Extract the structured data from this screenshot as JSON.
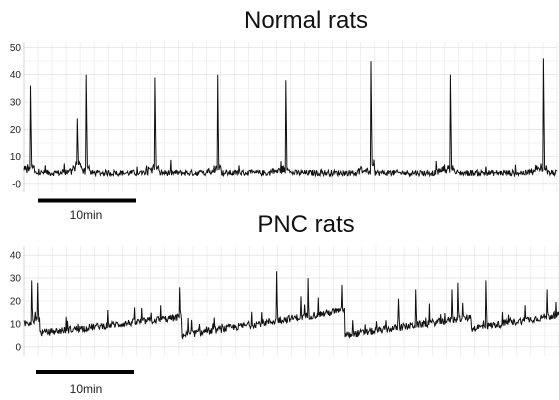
{
  "chart_data": [
    {
      "type": "line",
      "title": "Normal rats",
      "xlabel": "",
      "ylabel": "",
      "ylim": [
        -3,
        52
      ],
      "yticks": [
        "50",
        "40",
        "30",
        "20",
        "10",
        "-0"
      ],
      "ytick_values": [
        50,
        40,
        30,
        20,
        10,
        0
      ],
      "xlim": [
        0,
        55
      ],
      "x_units": "min",
      "grid": true,
      "scale_bar": {
        "label": "10min",
        "minutes": 10
      },
      "line_color": "#111111",
      "baseline": 4,
      "spikes": [
        {
          "x": 0.7,
          "y": 36
        },
        {
          "x": 5.5,
          "y": 24
        },
        {
          "x": 6.4,
          "y": 40
        },
        {
          "x": 13.5,
          "y": 39
        },
        {
          "x": 20.0,
          "y": 40
        },
        {
          "x": 27.0,
          "y": 38
        },
        {
          "x": 35.8,
          "y": 45
        },
        {
          "x": 44.0,
          "y": 40
        },
        {
          "x": 53.6,
          "y": 46
        }
      ]
    },
    {
      "type": "line",
      "title": "PNC rats",
      "xlabel": "",
      "ylabel": "",
      "ylim": [
        -4,
        44
      ],
      "yticks": [
        "40",
        "30",
        "20",
        "10",
        "0"
      ],
      "ytick_values": [
        40,
        30,
        20,
        10,
        0
      ],
      "xlim": [
        0,
        55
      ],
      "x_units": "min",
      "grid": true,
      "scale_bar": {
        "label": "10min",
        "minutes": 10
      },
      "line_color": "#111111",
      "segments": [
        {
          "start": 0,
          "end": 1.6,
          "y_start": 10,
          "y_end": 12
        },
        {
          "start": 1.6,
          "end": 16.2,
          "y_start": 6,
          "y_end": 13
        },
        {
          "start": 16.2,
          "end": 33.0,
          "y_start": 5,
          "y_end": 16
        },
        {
          "start": 33.0,
          "end": 46.0,
          "y_start": 5,
          "y_end": 13
        },
        {
          "start": 46.0,
          "end": 55,
          "y_start": 8,
          "y_end": 14
        }
      ],
      "spikes": [
        {
          "x": 0.8,
          "y": 29
        },
        {
          "x": 1.4,
          "y": 28
        },
        {
          "x": 16.0,
          "y": 26
        },
        {
          "x": 26.0,
          "y": 33
        },
        {
          "x": 28.5,
          "y": 22
        },
        {
          "x": 29.2,
          "y": 30
        },
        {
          "x": 32.7,
          "y": 27
        },
        {
          "x": 38.5,
          "y": 21
        },
        {
          "x": 40.3,
          "y": 25
        },
        {
          "x": 44.0,
          "y": 25
        },
        {
          "x": 44.6,
          "y": 28
        },
        {
          "x": 47.5,
          "y": 29
        },
        {
          "x": 53.8,
          "y": 25
        }
      ]
    }
  ]
}
